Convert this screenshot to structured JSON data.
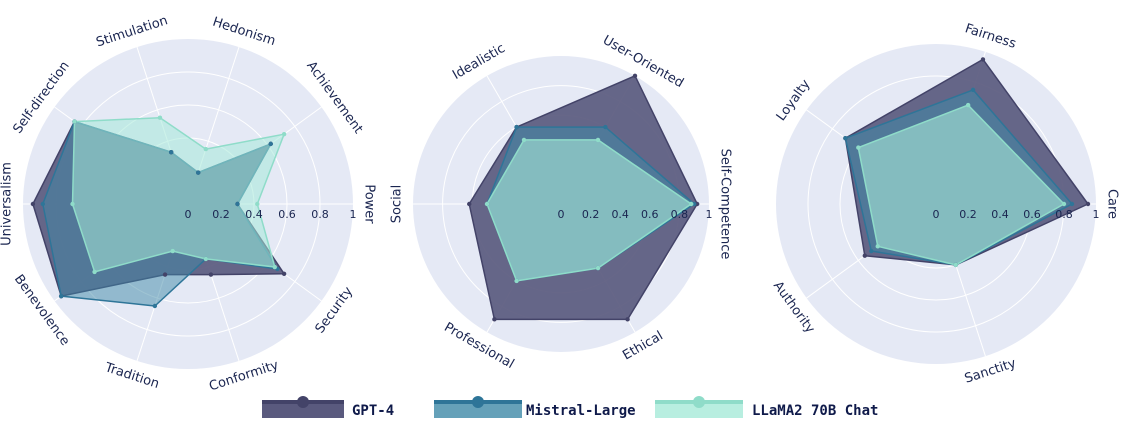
{
  "colors": {
    "background_disk": "#e5e9f5",
    "grid": "#ffffff",
    "text": "#1a2550",
    "series": [
      "#5a5a7e",
      "#3f89a8",
      "#a6ead8"
    ],
    "series_line": [
      "#434368",
      "#2e7598",
      "#8fdcc9"
    ]
  },
  "legend": {
    "placement": "bottom-center",
    "entries": [
      "GPT-4",
      "Mistral-Large",
      "LLaMA2 70B Chat"
    ]
  },
  "chart_data": [
    {
      "type": "radar",
      "radial_range": [
        0,
        1
      ],
      "ticks": [
        "0",
        "0.2",
        "0.4",
        "0.6",
        "0.8",
        "1"
      ],
      "tick_values": [
        0,
        0.2,
        0.4,
        0.6,
        0.8,
        1
      ],
      "axes": [
        "Power",
        "Achievement",
        "Hedonism",
        "Stimulation",
        "Self-direction",
        "Universalism",
        "Benevolence",
        "Tradition",
        "Conformity",
        "Security"
      ],
      "series": [
        {
          "name": "GPT-4",
          "values": [
            0.3,
            0.62,
            0.2,
            0.33,
            0.85,
            0.94,
            0.95,
            0.45,
            0.45,
            0.72
          ]
        },
        {
          "name": "Mistral-Large",
          "values": [
            0.3,
            0.62,
            0.2,
            0.33,
            0.85,
            0.88,
            0.95,
            0.65,
            0.35,
            0.67
          ]
        },
        {
          "name": "LLaMA2 70B Chat",
          "values": [
            0.42,
            0.72,
            0.35,
            0.55,
            0.85,
            0.7,
            0.7,
            0.3,
            0.35,
            0.65
          ]
        }
      ]
    },
    {
      "type": "radar",
      "radial_range": [
        0,
        1
      ],
      "ticks": [
        "0",
        "0.2",
        "0.4",
        "0.6",
        "0.8",
        "1"
      ],
      "tick_values": [
        0,
        0.2,
        0.4,
        0.6,
        0.8,
        1
      ],
      "axes": [
        "Self-Competence",
        "User-Oriented",
        "Idealistic",
        "Social",
        "Professional",
        "Ethical"
      ],
      "series": [
        {
          "name": "GPT-4",
          "values": [
            0.92,
            1.0,
            0.6,
            0.62,
            0.9,
            0.9
          ]
        },
        {
          "name": "Mistral-Large",
          "values": [
            0.9,
            0.6,
            0.6,
            0.5,
            0.6,
            0.5
          ]
        },
        {
          "name": "LLaMA2 70B Chat",
          "values": [
            0.88,
            0.5,
            0.5,
            0.5,
            0.6,
            0.5
          ]
        }
      ]
    },
    {
      "type": "radar",
      "radial_range": [
        0,
        1
      ],
      "ticks": [
        "0",
        "0.2",
        "0.4",
        "0.6",
        "0.8",
        "1"
      ],
      "tick_values": [
        0,
        0.2,
        0.4,
        0.6,
        0.8,
        1
      ],
      "axes": [
        "Care",
        "Fairness",
        "Loyalty",
        "Authority",
        "Sanctity"
      ],
      "series": [
        {
          "name": "GPT-4",
          "values": [
            0.95,
            0.95,
            0.7,
            0.55,
            0.4
          ]
        },
        {
          "name": "Mistral-Large",
          "values": [
            0.85,
            0.75,
            0.7,
            0.5,
            0.4
          ]
        },
        {
          "name": "LLaMA2 70B Chat",
          "values": [
            0.8,
            0.65,
            0.6,
            0.45,
            0.4
          ]
        }
      ]
    }
  ]
}
